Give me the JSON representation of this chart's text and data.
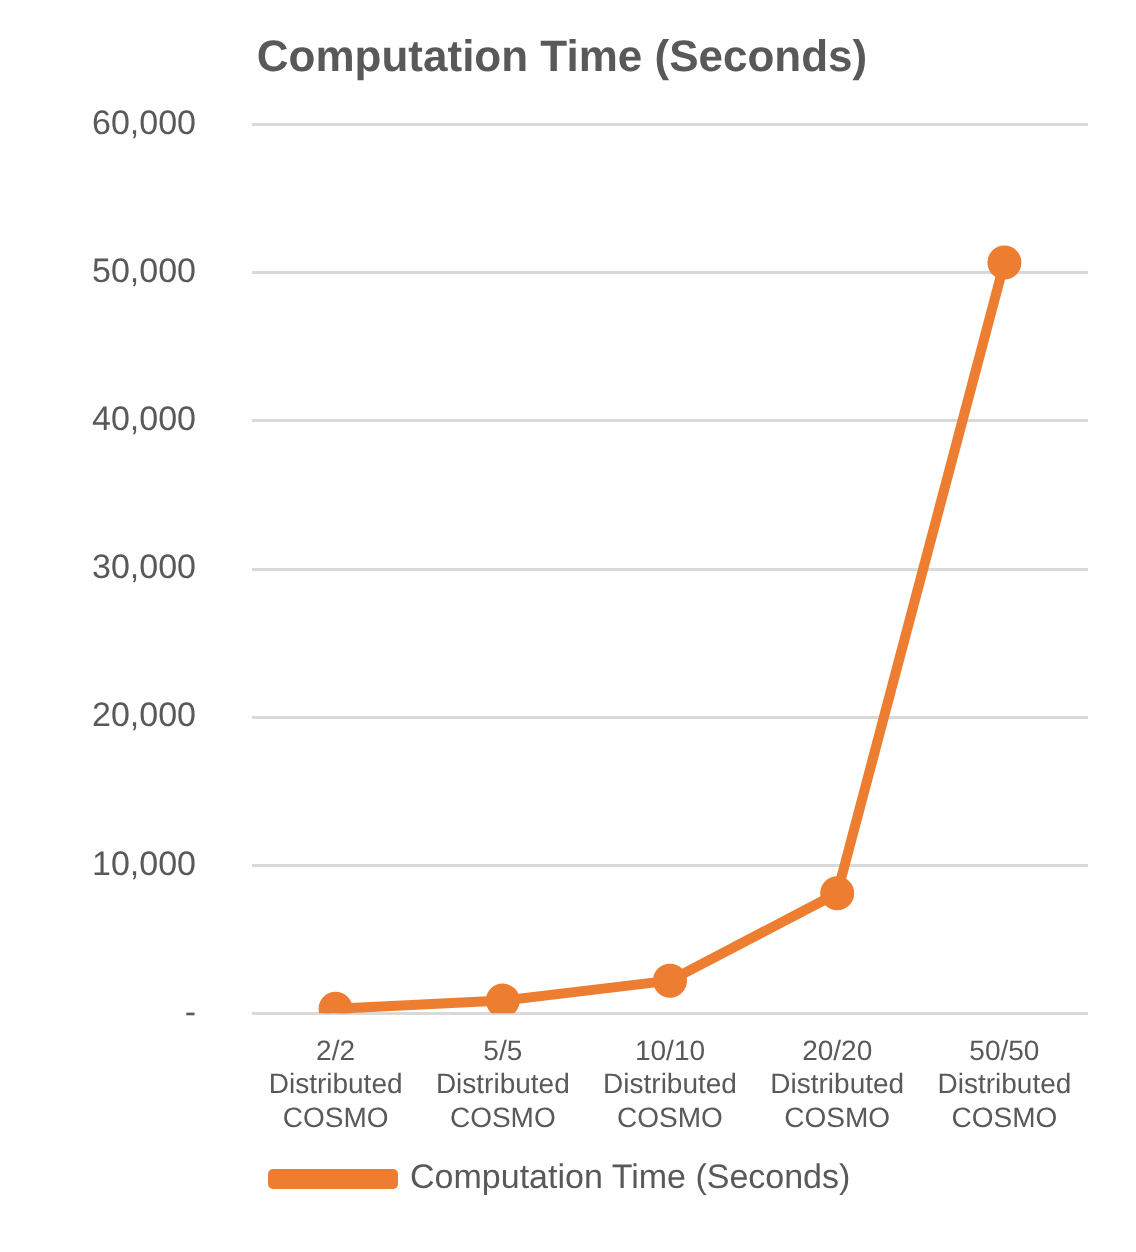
{
  "chart_data": {
    "type": "line",
    "title": "Computation Time (Seconds)",
    "categories": [
      "2/2 Distributed COSMO",
      "5/5 Distributed COSMO",
      "10/10 Distributed COSMO",
      "20/20 Distributed COSMO",
      "50/50 Distributed COSMO"
    ],
    "series": [
      {
        "name": "Computation Time (Seconds)",
        "color": "#ed7d31",
        "values": [
          300,
          850,
          2200,
          8100,
          50700
        ]
      }
    ],
    "ylim": [
      0,
      60000
    ],
    "yticks": [
      {
        "value": 0,
        "label": "-"
      },
      {
        "value": 10000,
        "label": "10,000"
      },
      {
        "value": 20000,
        "label": "20,000"
      },
      {
        "value": 30000,
        "label": "30,000"
      },
      {
        "value": 40000,
        "label": "40,000"
      },
      {
        "value": 50000,
        "label": "50,000"
      },
      {
        "value": 60000,
        "label": "60,000"
      }
    ],
    "grid": "y",
    "legend": "bottom",
    "marker": "circle",
    "line_style": "solid"
  }
}
